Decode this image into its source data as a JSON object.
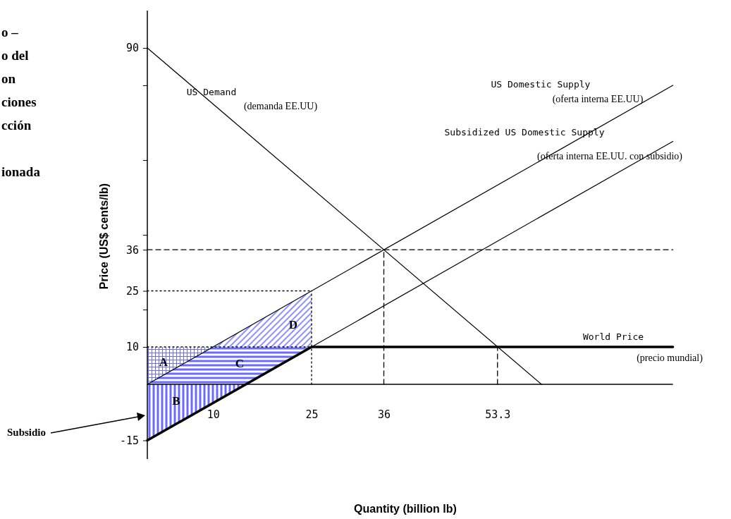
{
  "chart_data": {
    "type": "line",
    "title": "o –\no del\non\nciones\ncción\n\nionada",
    "xlabel": "Quantity (billion lb)",
    "ylabel": "Price (US$ cents/lb)",
    "xlim": [
      0,
      80
    ],
    "ylim": [
      -20,
      100
    ],
    "xticks": [
      10,
      25,
      36,
      53.3
    ],
    "yticks": [
      -15,
      10,
      {
        "value": 20,
        "label": null
      },
      25,
      36,
      {
        "value": 40,
        "label": null
      },
      {
        "value": 60,
        "label": null
      },
      {
        "value": 80,
        "label": null
      },
      90
    ],
    "grid": false,
    "marker": "none",
    "series": [
      {
        "color": "#000000",
        "line_style": "dashed",
        "x": [
          0,
          80
        ],
        "values": [
          36,
          36
        ]
      },
      {
        "color": "#000000",
        "line_style": "dashed",
        "x": [
          36,
          36
        ],
        "values": [
          0,
          36
        ]
      },
      {
        "color": "#000000",
        "line_style": "dashed",
        "x": [
          53.3,
          53.3
        ],
        "values": [
          0,
          10
        ]
      },
      {
        "color": "#000000",
        "line_style": "dotted",
        "x": [
          0,
          25
        ],
        "values": [
          25,
          25
        ]
      },
      {
        "color": "#000000",
        "line_style": "dotted",
        "x": [
          25,
          25
        ],
        "values": [
          0,
          25
        ]
      },
      {
        "color": "#000000",
        "line_style": "dotted",
        "x": [
          0,
          25
        ],
        "values": [
          10,
          10
        ]
      },
      {
        "color": "#000000",
        "line_style": "solid",
        "x": [
          0,
          60
        ],
        "values": [
          90,
          0
        ]
      },
      {
        "color": "#000000",
        "line_style": "solid",
        "x": [
          0,
          80
        ],
        "values": [
          0,
          80
        ]
      },
      {
        "color": "#000000",
        "line_style": "solid",
        "x": [
          25,
          80
        ],
        "values": [
          10,
          65
        ]
      },
      {
        "color": "#000000",
        "line_style": "solid",
        "x": [
          0,
          25,
          80
        ],
        "values": [
          -15,
          10,
          10
        ]
      }
    ],
    "annotations": [
      "A",
      "B",
      "C",
      "D",
      "US Demand",
      "(demanda EE.UU)",
      "US Domestic Supply",
      "(oferta interna EE.UU)",
      "Subsidized US Domestic Supply",
      "(oferta interna EE.UU. con subsidio)",
      "World Price",
      "(precio mundial)",
      "Subsidio"
    ]
  }
}
